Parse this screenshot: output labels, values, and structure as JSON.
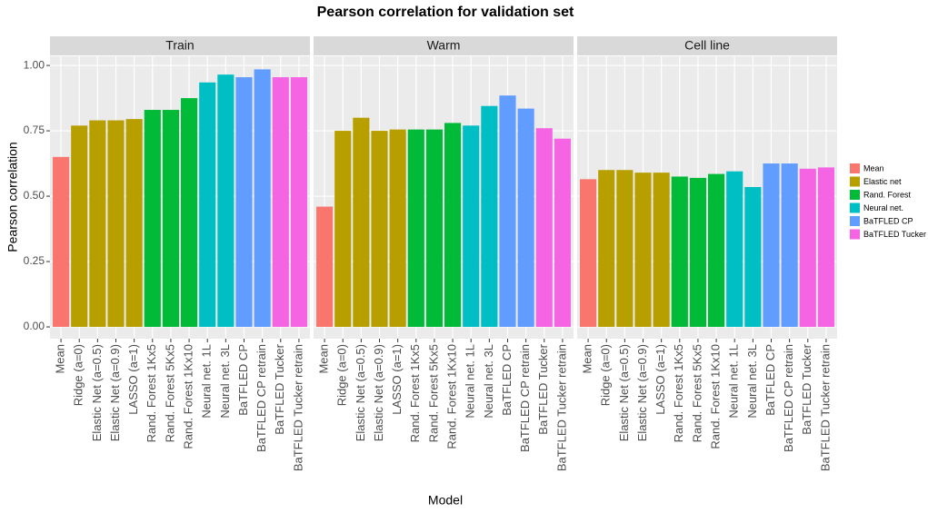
{
  "chart_data": {
    "type": "bar",
    "title": "Pearson correlation for validation set",
    "xlabel": "Model",
    "ylabel": "Pearson correlation",
    "categories": [
      "Mean",
      "Ridge (a=0)",
      "Elastic Net (a=0.5)",
      "Elastic Net (a=0.9)",
      "LASSO (a=1)",
      "Rand. Forest 1Kx5",
      "Rand. Forest 5Kx5",
      "Rand. Forest 1Kx10",
      "Neural net. 1L",
      "Neural net. 3L",
      "BaTFLED CP",
      "BaTFLED CP retrain",
      "BaTFLED Tucker",
      "BaTFLED Tucker retrain"
    ],
    "colors": [
      "#F8766D",
      "#B79F00",
      "#B79F00",
      "#B79F00",
      "#B79F00",
      "#00BA38",
      "#00BA38",
      "#00BA38",
      "#00BFC4",
      "#00BFC4",
      "#619CFF",
      "#619CFF",
      "#F564E3",
      "#F564E3"
    ],
    "facets": [
      {
        "name": "Train",
        "values": [
          0.65,
          0.77,
          0.79,
          0.79,
          0.795,
          0.83,
          0.83,
          0.875,
          0.935,
          0.965,
          0.955,
          0.985,
          0.955,
          0.955
        ]
      },
      {
        "name": "Warm",
        "values": [
          0.46,
          0.75,
          0.8,
          0.75,
          0.755,
          0.755,
          0.755,
          0.78,
          0.77,
          0.845,
          0.885,
          0.835,
          0.76,
          0.72
        ]
      },
      {
        "name": "Cell line",
        "values": [
          0.565,
          0.6,
          0.6,
          0.59,
          0.59,
          0.575,
          0.57,
          0.585,
          0.595,
          0.535,
          0.625,
          0.625,
          0.605,
          0.61
        ]
      }
    ],
    "legend": [
      {
        "name": "Mean",
        "color": "#F8766D"
      },
      {
        "name": "Elastic net",
        "color": "#B79F00"
      },
      {
        "name": "Rand. Forest",
        "color": "#00BA38"
      },
      {
        "name": "Neural net.",
        "color": "#00BFC4"
      },
      {
        "name": "BaTFLED CP",
        "color": "#619CFF"
      },
      {
        "name": "BaTFLED Tucker",
        "color": "#F564E3"
      }
    ],
    "ylim": [
      -0.045,
      1.035
    ],
    "yticks": [
      {
        "value": 0,
        "label": "0.00"
      },
      {
        "value": 0.25,
        "label": "0.25"
      },
      {
        "value": 0.5,
        "label": "0.50"
      },
      {
        "value": 0.75,
        "label": "0.75"
      },
      {
        "value": 1,
        "label": "1.00"
      }
    ],
    "grid": true
  }
}
